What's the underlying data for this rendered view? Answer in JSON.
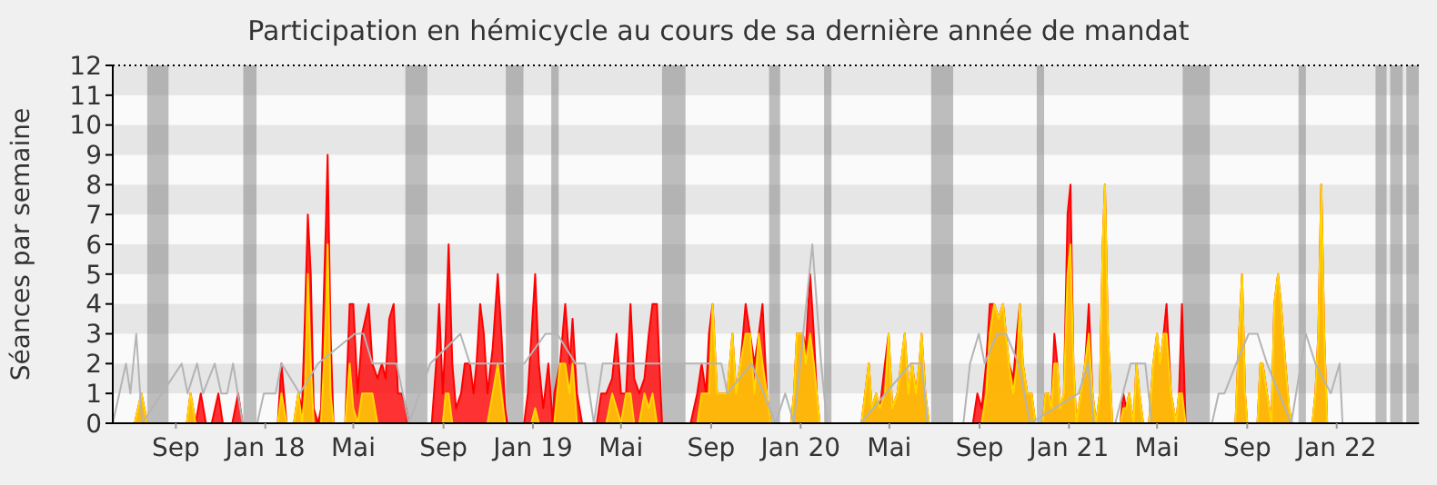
{
  "chart_data": {
    "type": "area",
    "title": "Participation en hémicycle au cours de sa dernière année de mandat",
    "ylabel": "Séances par semaine",
    "xlim": [
      "2017-06-07",
      "2022-04-23"
    ],
    "xticks": [
      {
        "value": "2017-09-01",
        "label": "Sep"
      },
      {
        "value": "2018-01-01",
        "label": "Jan 18"
      },
      {
        "value": "2018-05-01",
        "label": "Mai"
      },
      {
        "value": "2018-09-01",
        "label": "Sep"
      },
      {
        "value": "2019-01-01",
        "label": "Jan 19"
      },
      {
        "value": "2019-05-01",
        "label": "Mai"
      },
      {
        "value": "2019-09-01",
        "label": "Sep"
      },
      {
        "value": "2020-01-01",
        "label": "Jan 20"
      },
      {
        "value": "2020-05-01",
        "label": "Mai"
      },
      {
        "value": "2020-09-01",
        "label": "Sep"
      },
      {
        "value": "2021-01-01",
        "label": "Jan 21"
      },
      {
        "value": "2021-05-01",
        "label": "Mai"
      },
      {
        "value": "2021-09-01",
        "label": "Sep"
      },
      {
        "value": "2022-01-01",
        "label": "Jan 22"
      }
    ],
    "ylim": [
      0,
      12
    ],
    "yticks": [
      0,
      1,
      2,
      3,
      4,
      5,
      6,
      7,
      8,
      9,
      10,
      11,
      12
    ],
    "x": [
      "2017-06-07",
      "2017-07-07",
      "2017-07-16",
      "2017-07-24",
      "2017-09-16",
      "2017-09-21",
      "2017-09-28",
      "2017-10-05",
      "2017-10-12",
      "2017-10-20",
      "2017-10-29",
      "2017-11-04",
      "2017-11-17",
      "2017-11-25",
      "2017-12-01",
      "2018-01-18",
      "2018-01-23",
      "2018-01-30",
      "2018-02-09",
      "2018-02-15",
      "2018-02-20",
      "2018-02-24",
      "2018-02-28",
      "2018-03-04",
      "2018-03-08",
      "2018-03-14",
      "2018-03-18",
      "2018-03-22",
      "2018-03-25",
      "2018-03-27",
      "2018-03-31",
      "2018-04-04",
      "2018-04-20",
      "2018-04-26",
      "2018-05-01",
      "2018-05-07",
      "2018-05-13",
      "2018-05-22",
      "2018-05-27",
      "2018-06-03",
      "2018-06-09",
      "2018-06-14",
      "2018-06-19",
      "2018-06-25",
      "2018-07-01",
      "2018-07-06",
      "2018-07-12",
      "2018-07-16",
      "2018-08-16",
      "2018-08-22",
      "2018-08-26",
      "2018-08-31",
      "2018-09-04",
      "2018-09-08",
      "2018-09-13",
      "2018-09-18",
      "2018-09-25",
      "2018-09-30",
      "2018-10-07",
      "2018-10-12",
      "2018-10-16",
      "2018-10-21",
      "2018-10-26",
      "2018-10-31",
      "2018-11-07",
      "2018-11-14",
      "2018-11-19",
      "2018-11-24",
      "2018-11-27",
      "2018-12-20",
      "2018-12-25",
      "2018-12-30",
      "2019-01-04",
      "2019-01-09",
      "2019-01-15",
      "2019-01-22",
      "2019-01-28",
      "2019-01-30",
      "2019-02-07",
      "2019-02-14",
      "2019-02-20",
      "2019-02-24",
      "2019-03-02",
      "2019-03-09",
      "2019-03-29",
      "2019-04-04",
      "2019-04-11",
      "2019-04-19",
      "2019-04-25",
      "2019-05-01",
      "2019-05-08",
      "2019-05-14",
      "2019-05-19",
      "2019-05-26",
      "2019-06-02",
      "2019-06-08",
      "2019-06-13",
      "2019-06-19",
      "2019-06-26",
      "2019-08-04",
      "2019-08-13",
      "2019-08-19",
      "2019-08-25",
      "2019-08-29",
      "2019-09-03",
      "2019-09-09",
      "2019-09-23",
      "2019-09-30",
      "2019-10-05",
      "2019-10-11",
      "2019-10-18",
      "2019-10-24",
      "2019-10-30",
      "2019-11-05",
      "2019-11-10",
      "2019-11-16",
      "2019-11-21",
      "2019-12-19",
      "2019-12-23",
      "2019-12-27",
      "2020-01-04",
      "2020-01-08",
      "2020-01-14",
      "2020-01-19",
      "2020-01-23",
      "2020-01-27",
      "2020-03-24",
      "2020-03-29",
      "2020-04-03",
      "2020-04-07",
      "2020-04-13",
      "2020-04-18",
      "2020-04-25",
      "2020-04-30",
      "2020-05-05",
      "2020-05-12",
      "2020-05-17",
      "2020-05-22",
      "2020-05-27",
      "2020-06-01",
      "2020-06-06",
      "2020-06-11",
      "2020-06-14",
      "2020-06-19",
      "2020-06-24",
      "2020-08-23",
      "2020-08-29",
      "2020-09-04",
      "2020-09-10",
      "2020-09-15",
      "2020-09-21",
      "2020-09-27",
      "2020-10-03",
      "2020-10-11",
      "2020-10-17",
      "2020-10-22",
      "2020-10-26",
      "2020-10-30",
      "2020-11-05",
      "2020-11-11",
      "2020-11-16",
      "2020-11-26",
      "2020-11-30",
      "2020-12-04",
      "2020-12-08",
      "2020-12-12",
      "2020-12-16",
      "2020-12-20",
      "2020-12-25",
      "2020-12-30",
      "2021-01-03",
      "2021-01-07",
      "2021-01-11",
      "2021-01-17",
      "2021-01-23",
      "2021-01-28",
      "2021-02-02",
      "2021-02-07",
      "2021-02-12",
      "2021-02-16",
      "2021-02-19",
      "2021-02-23",
      "2021-03-01",
      "2021-03-12",
      "2021-03-16",
      "2021-03-20",
      "2021-03-24",
      "2021-03-30",
      "2021-04-03",
      "2021-04-07",
      "2021-04-12",
      "2021-04-20",
      "2021-04-26",
      "2021-05-01",
      "2021-05-05",
      "2021-05-10",
      "2021-05-14",
      "2021-05-20",
      "2021-05-27",
      "2021-05-31",
      "2021-06-04",
      "2021-06-09",
      "2021-08-16",
      "2021-08-21",
      "2021-08-25",
      "2021-08-29",
      "2021-09-01",
      "2021-09-15",
      "2021-09-19",
      "2021-09-22",
      "2021-09-28",
      "2021-10-04",
      "2021-10-08",
      "2021-10-13",
      "2021-10-17",
      "2021-10-23",
      "2021-10-28",
      "2021-11-01",
      "2021-11-29",
      "2021-12-03",
      "2021-12-07",
      "2021-12-11",
      "2021-12-15",
      "2021-12-19",
      "2022-04-23"
    ],
    "series": [
      {
        "type": "line",
        "color": "#b4b4b4",
        "x": [
          "2017-06-07",
          "2017-06-25",
          "2017-07-01",
          "2017-07-09",
          "2017-07-17",
          "2017-09-09",
          "2017-09-17",
          "2017-09-30",
          "2017-10-08",
          "2017-10-24",
          "2017-11-02",
          "2017-11-10",
          "2017-11-18",
          "2017-12-01",
          "2017-12-21",
          "2017-12-30",
          "2018-01-15",
          "2018-01-23",
          "2018-02-17",
          "2018-03-14",
          "2018-05-03",
          "2018-05-15",
          "2018-05-27",
          "2018-06-29",
          "2018-07-16",
          "2018-08-14",
          "2018-09-24",
          "2018-10-07",
          "2018-12-04",
          "2018-12-20",
          "2019-01-18",
          "2019-02-03",
          "2019-02-28",
          "2019-03-13",
          "2019-03-25",
          "2019-04-06",
          "2019-09-15",
          "2019-09-23",
          "2019-10-26",
          "2019-11-28",
          "2019-12-11",
          "2019-12-23",
          "2020-01-17",
          "2020-01-29",
          "2020-02-06",
          "2020-03-23",
          "2020-05-30",
          "2020-06-14",
          "2020-06-22",
          "2020-08-10",
          "2020-08-19",
          "2020-08-31",
          "2020-09-08",
          "2020-09-25",
          "2020-10-07",
          "2020-10-24",
          "2020-11-09",
          "2021-01-14",
          "2021-01-27",
          "2021-02-04",
          "2021-03-05",
          "2021-03-26",
          "2021-04-15",
          "2021-04-24",
          "2021-06-08",
          "2021-07-15",
          "2021-07-24",
          "2021-08-01",
          "2021-08-17",
          "2021-09-03",
          "2021-09-15",
          "2021-09-28",
          "2021-10-31",
          "2021-11-20",
          "2021-12-03",
          "2021-12-24",
          "2022-01-05",
          "2022-01-09",
          "2022-04-23"
        ],
        "values": [
          0,
          2,
          1,
          3,
          0,
          2,
          1,
          2,
          1,
          2,
          1,
          1,
          2,
          0,
          0,
          1,
          1,
          2,
          1,
          2,
          3,
          3,
          2,
          2,
          0,
          2,
          3,
          2,
          2,
          2,
          3,
          3,
          2,
          2,
          0,
          2,
          2,
          1,
          2,
          0,
          1,
          0,
          6,
          2,
          0,
          0,
          2,
          2,
          0,
          0,
          2,
          3,
          2,
          3,
          3,
          2,
          0,
          1,
          2,
          0,
          0,
          2,
          2,
          0,
          0,
          0,
          1,
          1,
          2,
          3,
          3,
          2,
          0,
          3,
          2,
          1,
          2,
          0,
          0
        ]
      },
      {
        "color": "#ff0000",
        "values": [
          0,
          0,
          1,
          0,
          0,
          1,
          0,
          1,
          0,
          0,
          1,
          0,
          0,
          1,
          0,
          0,
          2,
          0,
          0,
          1,
          0.5,
          3.5,
          7,
          5,
          0.5,
          0,
          0.5,
          4.5,
          7,
          9,
          3,
          0,
          0,
          4,
          4,
          1,
          3,
          4,
          2,
          1.5,
          2,
          1.5,
          3.5,
          4,
          1,
          1,
          0.5,
          0,
          0,
          2,
          4,
          1,
          3,
          6,
          2,
          0.5,
          1,
          2,
          2,
          1,
          2,
          4,
          3,
          1,
          2.5,
          5,
          3,
          0.5,
          0,
          0,
          1,
          3,
          5,
          2,
          0.5,
          2,
          0,
          1,
          2,
          4,
          2,
          3.5,
          1,
          0,
          0,
          1,
          1,
          1.5,
          3,
          1,
          1,
          4,
          1.5,
          1,
          1.5,
          3,
          4,
          4,
          0,
          0,
          1,
          2,
          1,
          3,
          4,
          1,
          1,
          3,
          1,
          2,
          4,
          3,
          2,
          3,
          4,
          1,
          0,
          0,
          1,
          3,
          3,
          2.5,
          5,
          3,
          1,
          0,
          0,
          1,
          2,
          0.5,
          1,
          0.5,
          2,
          3,
          0.5,
          1,
          2,
          3,
          1,
          2,
          1,
          2,
          3,
          1,
          0,
          0,
          1,
          0.5,
          2,
          4,
          4,
          3.5,
          4,
          2,
          1.5,
          3,
          4,
          2,
          1,
          1,
          0,
          0,
          1,
          1,
          0.5,
          3,
          2,
          0.5,
          1,
          7,
          8,
          2,
          0,
          1,
          2,
          4,
          1,
          0,
          1,
          6,
          8,
          3,
          0,
          0,
          1,
          0.5,
          1,
          0,
          2,
          1,
          0,
          0,
          2,
          3,
          2,
          3,
          4,
          1,
          0,
          1,
          4,
          0,
          0,
          3,
          5,
          1,
          0,
          0,
          2,
          2,
          1,
          0,
          4,
          5,
          4,
          2,
          0.5,
          0,
          0,
          1,
          3,
          8,
          3,
          0,
          0
        ]
      },
      {
        "color": "#ffd700",
        "values": [
          0,
          0,
          1,
          0,
          0,
          1,
          0,
          0,
          0,
          0,
          0,
          0,
          0,
          0,
          0,
          0,
          1,
          0,
          0,
          1,
          0,
          1,
          5,
          2,
          0,
          0,
          0,
          2,
          4,
          6,
          1,
          0,
          0,
          2,
          0.5,
          0,
          1,
          1,
          1,
          0,
          0,
          0,
          0,
          0,
          0,
          0,
          0,
          0,
          0,
          0,
          0,
          0,
          1,
          1,
          0,
          0,
          0,
          0,
          0,
          0,
          0,
          0,
          0,
          0,
          1,
          2,
          1,
          0,
          0,
          0,
          0,
          0,
          0.5,
          0,
          0,
          0,
          0,
          0,
          2,
          2,
          1,
          2,
          0,
          0,
          0,
          0,
          0,
          1,
          0.5,
          0,
          1,
          1,
          0,
          0,
          1,
          0.5,
          1,
          0,
          0,
          0,
          0,
          1,
          1,
          1,
          4,
          1,
          1,
          3,
          1,
          2,
          3,
          3,
          1,
          3,
          2,
          1,
          0,
          0,
          1,
          3,
          3,
          2,
          3,
          2,
          1,
          0,
          0,
          1,
          2,
          0.5,
          1,
          0.5,
          1,
          3,
          0.5,
          1,
          2,
          3,
          1,
          2,
          1,
          2,
          3,
          1,
          0,
          0,
          0,
          0,
          1,
          3,
          4,
          3.5,
          4,
          2,
          1,
          2,
          4,
          2,
          1,
          1,
          0,
          0,
          1,
          1,
          0.5,
          2,
          2,
          0.5,
          1,
          5,
          6,
          2,
          0,
          1,
          2,
          3,
          1,
          0,
          1,
          6,
          8,
          3,
          0,
          0,
          0.5,
          0.5,
          1,
          0,
          2,
          1,
          0,
          0,
          2,
          3,
          2,
          3,
          3,
          1,
          0,
          1,
          1,
          0,
          0,
          3,
          5,
          1,
          0,
          0,
          2,
          2,
          1,
          0,
          4,
          5,
          4,
          2,
          0.5,
          0,
          0,
          1,
          3,
          8,
          3,
          0,
          0
        ]
      }
    ],
    "bands": [
      {
        "axis": "y",
        "from": 1,
        "to": 2,
        "color": "#e6e6e6"
      },
      {
        "axis": "y",
        "from": 3,
        "to": 4,
        "color": "#e6e6e6"
      },
      {
        "axis": "y",
        "from": 5,
        "to": 6,
        "color": "#e6e6e6"
      },
      {
        "axis": "y",
        "from": 7,
        "to": 8,
        "color": "#e6e6e6"
      },
      {
        "axis": "y",
        "from": 9,
        "to": 10,
        "color": "#e6e6e6"
      },
      {
        "axis": "y",
        "from": 11,
        "to": 12,
        "color": "#e6e6e6"
      },
      {
        "axis": "x",
        "from": "2017-07-24",
        "to": "2017-08-22",
        "color": "#808080"
      },
      {
        "axis": "x",
        "from": "2017-12-02",
        "to": "2017-12-20",
        "color": "#808080"
      },
      {
        "axis": "x",
        "from": "2018-07-11",
        "to": "2018-08-10",
        "color": "#808080"
      },
      {
        "axis": "x",
        "from": "2018-11-25",
        "to": "2018-12-19",
        "color": "#808080"
      },
      {
        "axis": "x",
        "from": "2019-01-26",
        "to": "2019-02-05",
        "color": "#808080"
      },
      {
        "axis": "x",
        "from": "2019-06-26",
        "to": "2019-07-28",
        "color": "#808080"
      },
      {
        "axis": "x",
        "from": "2019-11-19",
        "to": "2019-12-04",
        "color": "#808080"
      },
      {
        "axis": "x",
        "from": "2020-02-02",
        "to": "2020-02-12",
        "color": "#808080"
      },
      {
        "axis": "x",
        "from": "2020-06-27",
        "to": "2020-07-27",
        "color": "#808080"
      },
      {
        "axis": "x",
        "from": "2020-11-18",
        "to": "2020-11-28",
        "color": "#808080"
      },
      {
        "axis": "x",
        "from": "2021-06-05",
        "to": "2021-07-12",
        "color": "#808080"
      },
      {
        "axis": "x",
        "from": "2021-11-10",
        "to": "2021-11-20",
        "color": "#808080"
      },
      {
        "axis": "x",
        "from": "2022-02-23",
        "to": "2022-03-10",
        "color": "#808080"
      },
      {
        "axis": "x",
        "from": "2022-03-15",
        "to": "2022-04-01",
        "color": "#808080"
      },
      {
        "axis": "x",
        "from": "2022-04-06",
        "to": "2022-04-23",
        "color": "#808080"
      }
    ]
  }
}
